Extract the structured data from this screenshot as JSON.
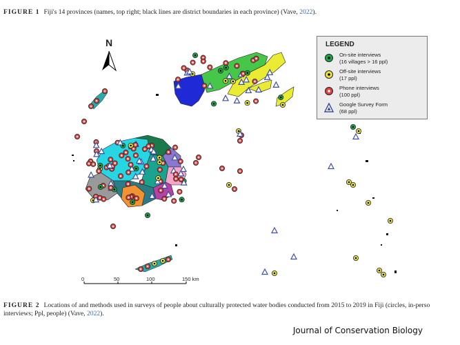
{
  "figure1": {
    "label": "FIGURE 1",
    "text": "Fiji's 14 provinces (names, top right; black lines are district boundaries in each province) (Vave, ",
    "year": "2022",
    "close": ")."
  },
  "north_arrow": {
    "letter": "N"
  },
  "legend": {
    "title": "LEGEND",
    "items": [
      {
        "line1": "On-site interviews",
        "line2": "(16 villages > 16 ppl)",
        "color": "#1aa84a",
        "shape": "circle"
      },
      {
        "line1": "Off-site interviews",
        "line2": "(17 ppl)",
        "color": "#e8e23a",
        "shape": "circle"
      },
      {
        "line1": "Phone interviews",
        "line2": "(100 ppl)",
        "color": "#e0423f",
        "shape": "circle"
      },
      {
        "line1": "Google Survey Form",
        "line2": "(68 ppl)",
        "color": "#3f4fa0",
        "shape": "triangle"
      }
    ]
  },
  "scale": {
    "ticks": [
      "0",
      "50",
      "100",
      "150 km"
    ]
  },
  "figure2": {
    "label": "FIGURE 2",
    "text1": "Locations of and methods used in surveys of people about culturally protected water bodies conducted from 2015 to 2019 in Fiji (circles, in-perso",
    "text2": "interviews; Ppl, people) (Vave, ",
    "year": "2022",
    "close": ")."
  },
  "journal": "Journal of Conservation Biology"
}
